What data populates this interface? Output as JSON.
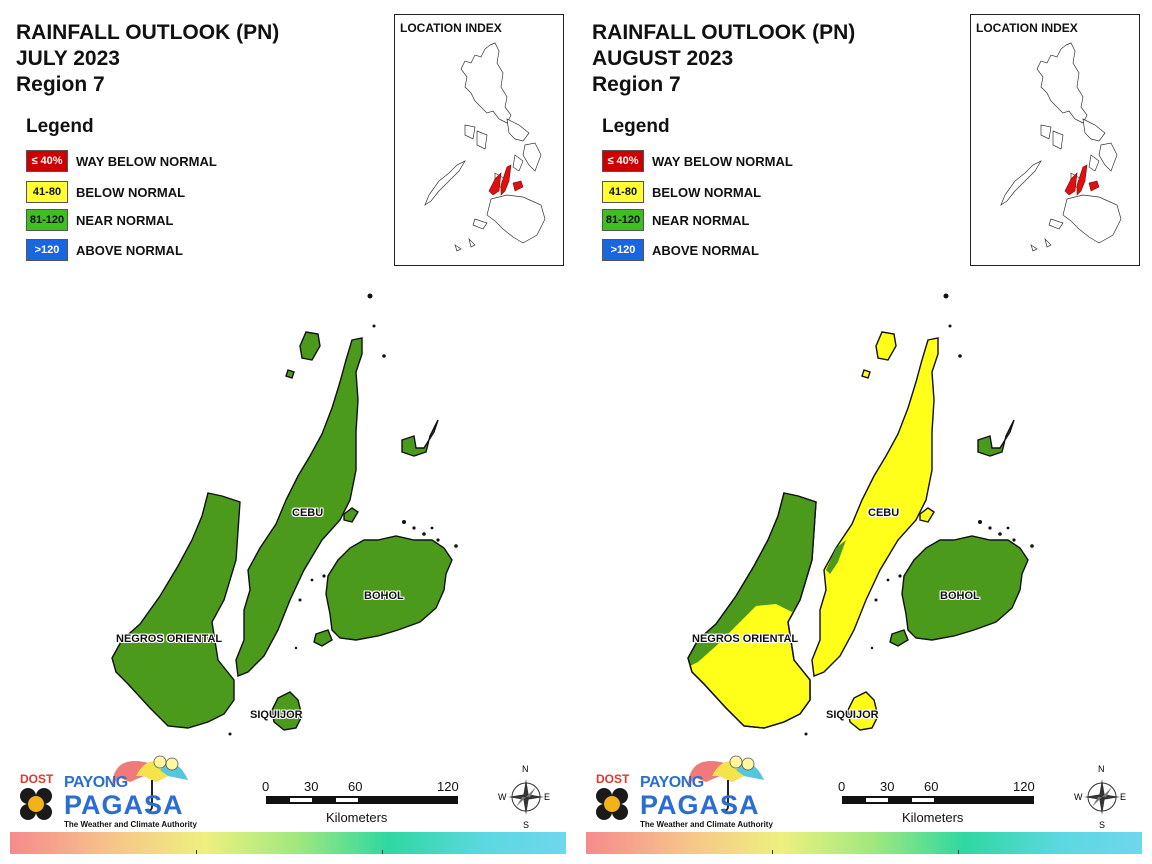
{
  "panels": [
    {
      "title_line1": "RAINFALL OUTLOOK (PN)",
      "title_line2": "JULY 2023",
      "title_line3": "Region 7",
      "cebu_color": "#4b9a1b"
    },
    {
      "title_line1": "RAINFALL OUTLOOK (PN)",
      "title_line2": "AUGUST 2023",
      "title_line3": "Region 7",
      "cebu_color": "#ffff1a"
    }
  ],
  "legend": {
    "title": "Legend",
    "items": [
      {
        "range": "≤ 40%",
        "label": "WAY BELOW NORMAL",
        "color": "#cc0000",
        "text_color": "#ffffff"
      },
      {
        "range": "41-80",
        "label": "BELOW NORMAL",
        "color": "#ffff33",
        "text_color": "#111111"
      },
      {
        "range": "81-120",
        "label": "NEAR NORMAL",
        "color": "#3fbf1f",
        "text_color": "#111111"
      },
      {
        "range": ">120",
        "label": "ABOVE NORMAL",
        "color": "#1a66e0",
        "text_color": "#ffffff"
      }
    ]
  },
  "location_index": {
    "title": "LOCATION INDEX",
    "highlight_color": "#dd1111"
  },
  "provinces": {
    "cebu": "CEBU",
    "bohol": "BOHOL",
    "negros_oriental": "NEGROS ORIENTAL",
    "siquijor": "SIQUIJOR"
  },
  "colors": {
    "near_normal": "#4b9a1b",
    "below_normal": "#ffff1a"
  },
  "scale": {
    "ticks": [
      "0",
      "30",
      "60",
      "120"
    ],
    "unit": "Kilometers"
  },
  "compass": {
    "n": "N",
    "s": "S",
    "e": "E",
    "w": "W"
  },
  "logo": {
    "dost": "DOST",
    "payong": "PAYONG",
    "pagasa": "PAGASA",
    "tagline": "The Weather and Climate Authority"
  }
}
